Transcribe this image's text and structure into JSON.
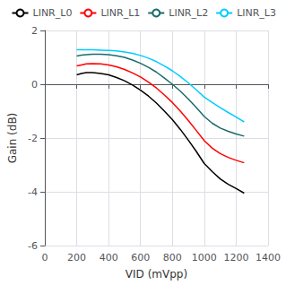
{
  "chart_data": {
    "type": "line",
    "xlabel": "VID (mVpp)",
    "ylabel": "Gain (dB)",
    "x": [
      200,
      230,
      260,
      300,
      350,
      400,
      450,
      500,
      550,
      600,
      650,
      700,
      750,
      800,
      850,
      900,
      950,
      1000,
      1050,
      1100,
      1150,
      1200,
      1250
    ],
    "series": [
      {
        "name": "LINR_L0",
        "color": "#000000",
        "values": [
          0.35,
          0.4,
          0.43,
          0.43,
          0.4,
          0.35,
          0.25,
          0.13,
          -0.03,
          -0.22,
          -0.44,
          -0.7,
          -1.0,
          -1.32,
          -1.68,
          -2.08,
          -2.5,
          -2.95,
          -3.25,
          -3.52,
          -3.72,
          -3.88,
          -4.05
        ]
      },
      {
        "name": "LINR_L1",
        "color": "#ff0000",
        "values": [
          0.68,
          0.72,
          0.76,
          0.77,
          0.76,
          0.72,
          0.65,
          0.55,
          0.42,
          0.27,
          0.08,
          -0.14,
          -0.4,
          -0.68,
          -1.0,
          -1.35,
          -1.72,
          -2.1,
          -2.38,
          -2.58,
          -2.72,
          -2.83,
          -2.92
        ]
      },
      {
        "name": "LINR_L2",
        "color": "#1a6b6b",
        "values": [
          1.05,
          1.08,
          1.1,
          1.12,
          1.12,
          1.1,
          1.06,
          1.0,
          0.9,
          0.78,
          0.63,
          0.45,
          0.23,
          0.0,
          -0.26,
          -0.55,
          -0.87,
          -1.2,
          -1.45,
          -1.63,
          -1.75,
          -1.85,
          -1.93
        ]
      },
      {
        "name": "LINR_L3",
        "color": "#00ccff",
        "values": [
          1.28,
          1.28,
          1.28,
          1.28,
          1.27,
          1.26,
          1.24,
          1.2,
          1.15,
          1.07,
          0.97,
          0.84,
          0.68,
          0.5,
          0.29,
          0.05,
          -0.21,
          -0.48,
          -0.68,
          -0.87,
          -1.05,
          -1.22,
          -1.4
        ]
      }
    ],
    "xlim": [
      0,
      1400
    ],
    "ylim": [
      -6,
      2
    ],
    "xticks": [
      0,
      200,
      400,
      600,
      800,
      1000,
      1200,
      1400
    ],
    "yticks": [
      -6,
      -4,
      -2,
      0,
      2
    ],
    "grid": true,
    "legend": "upper right"
  }
}
